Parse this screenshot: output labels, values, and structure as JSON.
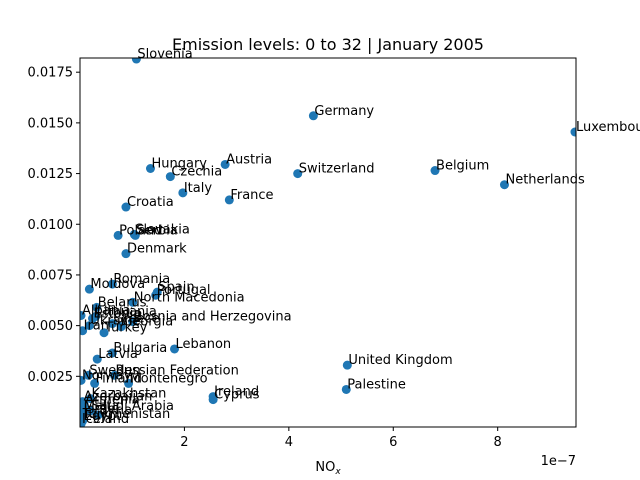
{
  "chart_data": {
    "type": "scatter",
    "title": "Emission levels: 0 to 32 | January 2005",
    "xlabel": "NO",
    "xlabel_sub": "x",
    "ylabel": "",
    "x_offset_text": "1e−7",
    "xlim": [
      0,
      9.5e-07
    ],
    "ylim": [
      0,
      0.0182
    ],
    "x_ticks": [
      {
        "value": 2e-07,
        "label": "2"
      },
      {
        "value": 4e-07,
        "label": "4"
      },
      {
        "value": 6e-07,
        "label": "6"
      },
      {
        "value": 8e-07,
        "label": "8"
      }
    ],
    "y_ticks": [
      {
        "value": 0.0025,
        "label": "0.0025"
      },
      {
        "value": 0.005,
        "label": "0.0050"
      },
      {
        "value": 0.0075,
        "label": "0.0075"
      },
      {
        "value": 0.01,
        "label": "0.0100"
      },
      {
        "value": 0.0125,
        "label": "0.0125"
      },
      {
        "value": 0.015,
        "label": "0.0150"
      },
      {
        "value": 0.0175,
        "label": "0.0175"
      }
    ],
    "marker_color": "#1f77b4",
    "points": [
      {
        "label": "Slovenia",
        "x": 1.08e-07,
        "y": 0.01815
      },
      {
        "label": "Germany",
        "x": 4.47e-07,
        "y": 0.01535
      },
      {
        "label": "Luxembourg",
        "x": 9.48e-07,
        "y": 0.01455
      },
      {
        "label": "Austria",
        "x": 2.78e-07,
        "y": 0.01295
      },
      {
        "label": "Hungary",
        "x": 1.35e-07,
        "y": 0.01275
      },
      {
        "label": "Czechia",
        "x": 1.73e-07,
        "y": 0.01235
      },
      {
        "label": "Switzerland",
        "x": 4.17e-07,
        "y": 0.0125
      },
      {
        "label": "Belgium",
        "x": 6.8e-07,
        "y": 0.01265
      },
      {
        "label": "Netherlands",
        "x": 8.13e-07,
        "y": 0.01195
      },
      {
        "label": "Italy",
        "x": 1.97e-07,
        "y": 0.01155
      },
      {
        "label": "France",
        "x": 2.86e-07,
        "y": 0.0112
      },
      {
        "label": "Croatia",
        "x": 8.8e-08,
        "y": 0.01085
      },
      {
        "label": "Slovakia",
        "x": 1.04e-07,
        "y": 0.0095
      },
      {
        "label": "Poland",
        "x": 7.3e-08,
        "y": 0.00945
      },
      {
        "label": "Serbia",
        "x": 1.06e-07,
        "y": 0.00945
      },
      {
        "label": "Denmark",
        "x": 8.8e-08,
        "y": 0.00855
      },
      {
        "label": "Romania",
        "x": 6.2e-08,
        "y": 0.00705
      },
      {
        "label": "Moldova",
        "x": 1.8e-08,
        "y": 0.0068
      },
      {
        "label": "Spain",
        "x": 1.48e-07,
        "y": 0.00665
      },
      {
        "label": "Portugal",
        "x": 1.45e-07,
        "y": 0.0065
      },
      {
        "label": "North Macedonia",
        "x": 1.01e-07,
        "y": 0.00615
      },
      {
        "label": "Belarus",
        "x": 3.2e-08,
        "y": 0.0059
      },
      {
        "label": "Albania",
        "x": 2e-09,
        "y": 0.0055
      },
      {
        "label": "Lithuania",
        "x": 3e-08,
        "y": 0.00545
      },
      {
        "label": "Estonia",
        "x": 2.4e-08,
        "y": 0.00535
      },
      {
        "label": "Greece",
        "x": 6.2e-08,
        "y": 0.0051
      },
      {
        "label": "Bosnia and Herzegovina",
        "x": 1.01e-07,
        "y": 0.0052
      },
      {
        "label": "Ukraine",
        "x": 1.8e-08,
        "y": 0.005
      },
      {
        "label": "Georgia",
        "x": 7.9e-08,
        "y": 0.00495
      },
      {
        "label": "Iran",
        "x": 5e-09,
        "y": 0.00475
      },
      {
        "label": "Turkey",
        "x": 4.6e-08,
        "y": 0.00465
      },
      {
        "label": "Bulgaria",
        "x": 6.2e-08,
        "y": 0.00365
      },
      {
        "label": "Lebanon",
        "x": 1.81e-07,
        "y": 0.00385
      },
      {
        "label": "Latvia",
        "x": 3.3e-08,
        "y": 0.00335
      },
      {
        "label": "United Kingdom",
        "x": 5.12e-07,
        "y": 0.00305
      },
      {
        "label": "Sweden",
        "x": 1.6e-08,
        "y": 0.00255
      },
      {
        "label": "Russian Federation",
        "x": 6.6e-08,
        "y": 0.00255
      },
      {
        "label": "Norway",
        "x": 2e-09,
        "y": 0.0023
      },
      {
        "label": "Montenegro",
        "x": 9.3e-08,
        "y": 0.00215
      },
      {
        "label": "Finland",
        "x": 2.8e-08,
        "y": 0.00215
      },
      {
        "label": "Palestine",
        "x": 5.1e-07,
        "y": 0.00185
      },
      {
        "label": "Ireland",
        "x": 2.55e-07,
        "y": 0.0015
      },
      {
        "label": "Cyprus",
        "x": 2.55e-07,
        "y": 0.00135
      },
      {
        "label": "Kazakhstan",
        "x": 2e-08,
        "y": 0.0014
      },
      {
        "label": "Azerbaijan",
        "x": 5e-09,
        "y": 0.00125
      },
      {
        "label": "Armenia",
        "x": 8e-09,
        "y": 0.0011
      },
      {
        "label": "Saudi Arabia",
        "x": 2e-08,
        "y": 0.0008
      },
      {
        "label": "Malta",
        "x": 5e-09,
        "y": 0.0008
      },
      {
        "label": "Israel",
        "x": 5e-09,
        "y": 0.00065
      },
      {
        "label": "Syria",
        "x": 3.5e-08,
        "y": 0.0006
      },
      {
        "label": "Turkmenistan",
        "x": 3e-09,
        "y": 0.0004
      },
      {
        "label": "Egypt",
        "x": 5e-09,
        "y": 0.0003
      },
      {
        "label": "Iceland",
        "x": 2e-09,
        "y": 0.00015
      }
    ]
  }
}
